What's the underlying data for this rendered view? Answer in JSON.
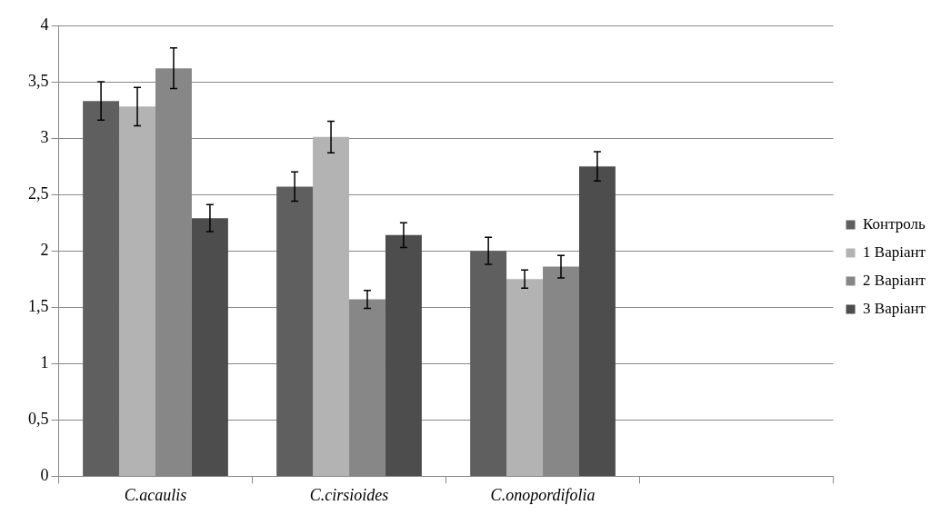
{
  "chart_data": {
    "type": "bar",
    "categories": [
      "C.acaulis",
      "C.cirsioides",
      "C.onopordifolia",
      null
    ],
    "series": [
      {
        "name": "Контроль",
        "color": "#5f5f5f",
        "values": [
          3.33,
          2.57,
          2.0,
          null
        ],
        "errors": [
          0.17,
          0.13,
          0.12,
          null
        ]
      },
      {
        "name": "1 Варіант",
        "color": "#b3b3b3",
        "values": [
          3.28,
          3.01,
          1.75,
          null
        ],
        "errors": [
          0.17,
          0.14,
          0.08,
          null
        ]
      },
      {
        "name": "2 Варіант",
        "color": "#878787",
        "values": [
          3.62,
          1.57,
          1.86,
          null
        ],
        "errors": [
          0.18,
          0.08,
          0.1,
          null
        ]
      },
      {
        "name": "3 Варіант",
        "color": "#4d4d4d",
        "values": [
          2.29,
          2.14,
          2.75,
          null
        ],
        "errors": [
          0.12,
          0.11,
          0.13,
          null
        ]
      }
    ],
    "ylim": [
      0,
      4
    ],
    "yticks": [
      0,
      {
        "value": 0.5,
        "label": "0,5"
      },
      1,
      {
        "value": 1.5,
        "label": "1,5"
      },
      2,
      {
        "value": 2.5,
        "label": "2,5"
      },
      3,
      {
        "value": 3.5,
        "label": "3,5"
      },
      4
    ],
    "grid": "y",
    "legend": "right"
  }
}
